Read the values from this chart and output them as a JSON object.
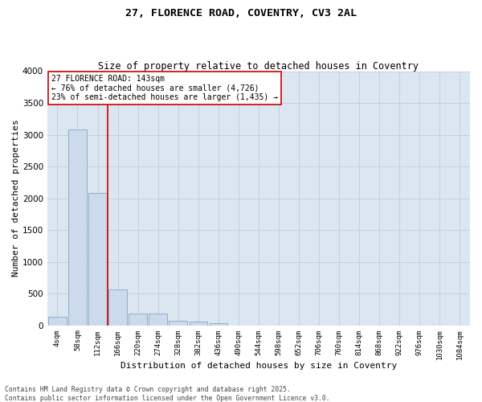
{
  "title_line1": "27, FLORENCE ROAD, COVENTRY, CV3 2AL",
  "title_line2": "Size of property relative to detached houses in Coventry",
  "xlabel": "Distribution of detached houses by size in Coventry",
  "ylabel": "Number of detached properties",
  "bin_labels": [
    "4sqm",
    "58sqm",
    "112sqm",
    "166sqm",
    "220sqm",
    "274sqm",
    "328sqm",
    "382sqm",
    "436sqm",
    "490sqm",
    "544sqm",
    "598sqm",
    "652sqm",
    "706sqm",
    "760sqm",
    "814sqm",
    "868sqm",
    "922sqm",
    "976sqm",
    "1030sqm",
    "1084sqm"
  ],
  "bar_values": [
    130,
    3080,
    2080,
    560,
    190,
    190,
    75,
    60,
    30,
    0,
    0,
    0,
    0,
    0,
    0,
    0,
    0,
    0,
    0,
    0,
    0
  ],
  "bar_color": "#cddaeb",
  "bar_edge_color": "#8aaecb",
  "ylim": [
    0,
    4000
  ],
  "yticks": [
    0,
    500,
    1000,
    1500,
    2000,
    2500,
    3000,
    3500,
    4000
  ],
  "vline_x": 2.5,
  "vline_color": "#cc0000",
  "annotation_text": "27 FLORENCE ROAD: 143sqm\n← 76% of detached houses are smaller (4,726)\n23% of semi-detached houses are larger (1,435) →",
  "annotation_box_edge_color": "#cc0000",
  "annotation_bg_color": "#ffffff",
  "footer_text": "Contains HM Land Registry data © Crown copyright and database right 2025.\nContains public sector information licensed under the Open Government Licence v3.0.",
  "grid_color": "#c0ccd8",
  "background_color": "#dce6f0",
  "title1_fontsize": 9.5,
  "title2_fontsize": 8.5,
  "xlabel_fontsize": 8,
  "ylabel_fontsize": 8,
  "tick_fontsize": 6.5,
  "ytick_fontsize": 7.5,
  "annotation_fontsize": 7,
  "footer_fontsize": 5.8
}
